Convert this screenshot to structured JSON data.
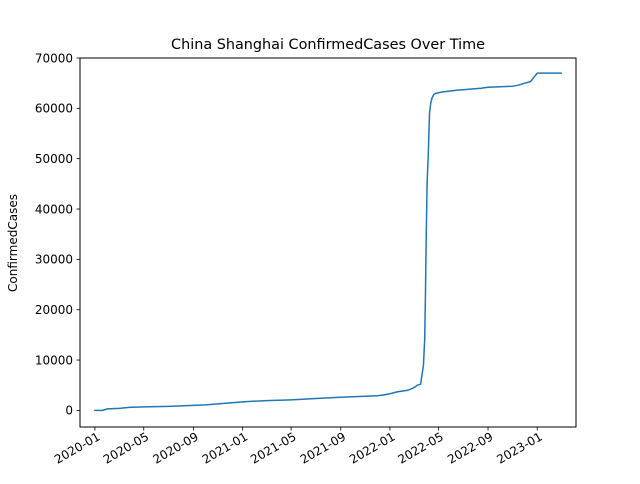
{
  "chart_data": {
    "type": "line",
    "title": "China Shanghai ConfirmedCases Over Time",
    "xlabel": "",
    "ylabel": "ConfirmedCases",
    "xlim": [
      "2019-11-25",
      "2023-04-07"
    ],
    "ylim": [
      -3300,
      70000
    ],
    "x_ticks": [
      "2020-01",
      "2020-05",
      "2020-09",
      "2021-01",
      "2021-05",
      "2021-09",
      "2022-01",
      "2022-05",
      "2022-09",
      "2023-01"
    ],
    "y_ticks": [
      0,
      10000,
      20000,
      30000,
      40000,
      50000,
      60000,
      70000
    ],
    "grid": false,
    "legend": "none",
    "color": "#1f77b4",
    "series": [
      {
        "x": [
          "2020-01-01",
          "2020-01-20",
          "2020-02-01",
          "2020-03-01",
          "2020-03-25",
          "2020-05-01",
          "2020-07-01",
          "2020-08-01",
          "2020-09-01",
          "2020-10-01",
          "2020-11-01",
          "2021-01-01",
          "2021-03-01",
          "2021-05-01",
          "2021-07-01",
          "2021-09-01",
          "2021-11-01",
          "2021-12-01",
          "2021-12-15",
          "2022-01-01",
          "2022-01-20",
          "2022-02-15",
          "2022-03-01",
          "2022-03-10",
          "2022-03-18",
          "2022-03-25",
          "2022-03-28",
          "2022-03-30",
          "2022-04-01",
          "2022-04-01",
          "2022-04-03",
          "2022-04-06",
          "2022-04-09",
          "2022-04-12",
          "2022-04-15",
          "2022-04-20",
          "2022-04-25",
          "2022-05-01",
          "2022-05-15",
          "2022-06-15",
          "2022-07-15",
          "2022-08-15",
          "2022-09-01",
          "2022-10-01",
          "2022-11-01",
          "2022-11-15",
          "2022-12-01",
          "2022-12-15",
          "2023-01-01",
          "2023-03-01"
        ],
        "y": [
          0,
          0,
          300,
          400,
          600,
          700,
          800,
          900,
          1000,
          1100,
          1300,
          1700,
          1950,
          2100,
          2350,
          2600,
          2800,
          2900,
          3050,
          3300,
          3700,
          4000,
          4500,
          5000,
          5200,
          9000,
          14000,
          23000,
          35600,
          35000,
          45000,
          51000,
          59000,
          61000,
          62000,
          62800,
          63000,
          63100,
          63300,
          63600,
          63800,
          64000,
          64200,
          64300,
          64400,
          64600,
          65000,
          65300,
          67000,
          67000
        ]
      }
    ]
  }
}
